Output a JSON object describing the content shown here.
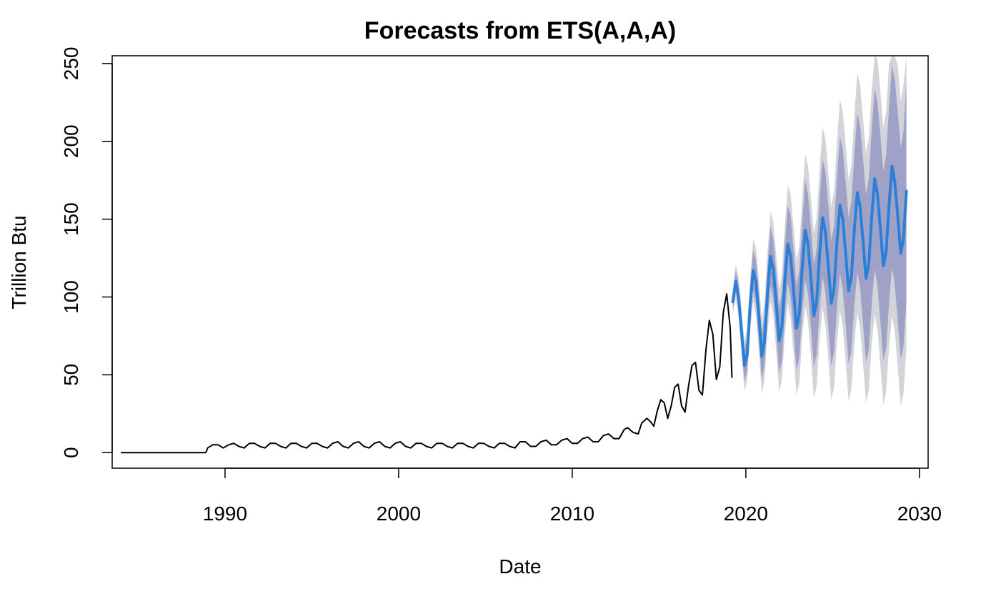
{
  "chart_data": {
    "type": "line",
    "title": "Forecasts from ETS(A,A,A)",
    "xlabel": "Date",
    "ylabel": "Trillion Btu",
    "xlim": [
      1983.5,
      2030.5
    ],
    "ylim": [
      -10,
      255
    ],
    "x_ticks": [
      1990,
      2000,
      2010,
      2020,
      2030
    ],
    "y_ticks": [
      0,
      50,
      100,
      150,
      200,
      250
    ],
    "x_tick_labels": [
      "1990",
      "2000",
      "2010",
      "2020",
      "2030"
    ],
    "y_tick_labels": [
      "0",
      "50",
      "100",
      "150",
      "200",
      "250"
    ],
    "grid": false,
    "legend": "none",
    "colors": {
      "observed": "#000000",
      "forecast": "#2a7fd8",
      "band_80": "#9fa2c6",
      "band_95": "#d3d4da"
    },
    "series": [
      {
        "role": "observed",
        "x": [
          1984.0,
          1984.5,
          1985.0,
          1985.5,
          1986.0,
          1986.5,
          1987.0,
          1987.5,
          1988.0,
          1988.5,
          1988.9,
          1989.0,
          1989.3,
          1989.6,
          1989.9,
          1990.2,
          1990.5,
          1990.8,
          1991.1,
          1991.4,
          1991.7,
          1992.0,
          1992.3,
          1992.6,
          1992.9,
          1993.2,
          1993.5,
          1993.8,
          1994.1,
          1994.4,
          1994.7,
          1995.0,
          1995.3,
          1995.6,
          1995.9,
          1996.2,
          1996.5,
          1996.8,
          1997.1,
          1997.4,
          1997.7,
          1998.0,
          1998.3,
          1998.6,
          1998.9,
          1999.2,
          1999.5,
          1999.8,
          2000.1,
          2000.4,
          2000.7,
          2001.0,
          2001.3,
          2001.6,
          2001.9,
          2002.2,
          2002.5,
          2002.8,
          2003.1,
          2003.4,
          2003.7,
          2004.0,
          2004.3,
          2004.6,
          2004.9,
          2005.2,
          2005.5,
          2005.8,
          2006.1,
          2006.4,
          2006.7,
          2007.0,
          2007.3,
          2007.6,
          2007.9,
          2008.2,
          2008.5,
          2008.8,
          2009.1,
          2009.4,
          2009.7,
          2010.0,
          2010.3,
          2010.6,
          2010.9,
          2011.2,
          2011.5,
          2011.8,
          2012.1,
          2012.4,
          2012.7,
          2013.0,
          2013.2,
          2013.5,
          2013.8,
          2014.0,
          2014.3,
          2014.5,
          2014.7,
          2014.9,
          2015.1,
          2015.3,
          2015.5,
          2015.7,
          2015.9,
          2016.1,
          2016.3,
          2016.5,
          2016.7,
          2016.9,
          2017.1,
          2017.3,
          2017.5,
          2017.7,
          2017.9,
          2018.1,
          2018.3,
          2018.5,
          2018.7,
          2018.9,
          2019.1,
          2019.2
        ],
        "y": [
          0,
          0,
          0,
          0,
          0,
          0,
          0,
          0,
          0,
          0,
          0,
          3,
          5,
          5,
          3,
          5,
          6,
          4,
          3,
          6,
          6,
          4,
          3,
          6,
          6,
          4,
          3,
          6,
          6,
          4,
          3,
          6,
          6,
          4,
          3,
          6,
          7,
          4,
          3,
          6,
          7,
          4,
          3,
          6,
          7,
          4,
          3,
          6,
          7,
          4,
          3,
          6,
          6,
          4,
          3,
          6,
          6,
          4,
          3,
          6,
          6,
          4,
          3,
          6,
          6,
          4,
          3,
          6,
          6,
          4,
          3,
          7,
          7,
          4,
          4,
          7,
          8,
          5,
          5,
          8,
          9,
          6,
          6,
          9,
          10,
          7,
          7,
          11,
          12,
          9,
          9,
          15,
          16,
          13,
          12,
          19,
          22,
          20,
          17,
          27,
          34,
          32,
          22,
          30,
          42,
          44,
          30,
          26,
          43,
          56,
          58,
          40,
          37,
          66,
          85,
          76,
          47,
          55,
          90,
          102,
          80,
          48
        ]
      },
      {
        "role": "forecast",
        "x": [
          2019.25,
          2019.42,
          2019.58,
          2019.75,
          2019.92,
          2020.08,
          2020.25,
          2020.42,
          2020.58,
          2020.75,
          2020.92,
          2021.08,
          2021.25,
          2021.42,
          2021.58,
          2021.75,
          2021.92,
          2022.08,
          2022.25,
          2022.42,
          2022.58,
          2022.75,
          2022.92,
          2023.08,
          2023.25,
          2023.42,
          2023.58,
          2023.75,
          2023.92,
          2024.08,
          2024.25,
          2024.42,
          2024.58,
          2024.75,
          2024.92,
          2025.08,
          2025.25,
          2025.42,
          2025.58,
          2025.75,
          2025.92,
          2026.08,
          2026.25,
          2026.42,
          2026.58,
          2026.75,
          2026.92,
          2027.08,
          2027.25,
          2027.42,
          2027.58,
          2027.75,
          2027.92,
          2028.08,
          2028.25,
          2028.42,
          2028.58,
          2028.75,
          2028.92,
          2029.08,
          2029.25
        ],
        "y": [
          97,
          110,
          100,
          78,
          56,
          63,
          95,
          117,
          110,
          88,
          62,
          72,
          103,
          126,
          118,
          96,
          72,
          81,
          111,
          134,
          126,
          104,
          80,
          89,
          119,
          143,
          134,
          112,
          88,
          97,
          127,
          151,
          142,
          120,
          96,
          105,
          135,
          159,
          150,
          128,
          104,
          113,
          143,
          167,
          158,
          136,
          112,
          121,
          151,
          176,
          166,
          144,
          120,
          129,
          159,
          184,
          174,
          152,
          128,
          137,
          168
        ]
      }
    ],
    "bands": [
      {
        "level": "80%",
        "lower": [
          92,
          103,
          92,
          69,
          46,
          52,
          84,
          104,
          96,
          73,
          47,
          56,
          86,
          107,
          99,
          76,
          51,
          59,
          88,
          109,
          100,
          78,
          53,
          61,
          90,
          111,
          102,
          80,
          55,
          63,
          92,
          113,
          103,
          81,
          56,
          64,
          93,
          115,
          105,
          82,
          57,
          65,
          94,
          116,
          106,
          83,
          58,
          66,
          95,
          118,
          107,
          84,
          59,
          67,
          96,
          119,
          108,
          85,
          60,
          68,
          97
        ],
        "upper": [
          102,
          117,
          108,
          87,
          66,
          74,
          106,
          130,
          124,
          103,
          77,
          88,
          120,
          145,
          137,
          116,
          93,
          103,
          134,
          159,
          152,
          130,
          107,
          117,
          148,
          175,
          166,
          144,
          121,
          131,
          162,
          189,
          181,
          159,
          136,
          146,
          177,
          203,
          195,
          174,
          151,
          161,
          192,
          218,
          210,
          189,
          166,
          176,
          207,
          234,
          225,
          204,
          181,
          191,
          222,
          249,
          240,
          219,
          196,
          206,
          239
        ]
      },
      {
        "level": "95%",
        "lower": [
          89,
          99,
          87,
          64,
          40,
          46,
          78,
          97,
          88,
          65,
          38,
          47,
          77,
          97,
          88,
          65,
          39,
          47,
          76,
          96,
          86,
          63,
          37,
          45,
          74,
          94,
          84,
          61,
          35,
          43,
          72,
          93,
          82,
          60,
          34,
          42,
          71,
          91,
          81,
          58,
          33,
          41,
          70,
          90,
          80,
          57,
          32,
          40,
          69,
          89,
          79,
          56,
          31,
          39,
          68,
          88,
          78,
          55,
          30,
          38,
          67
        ],
        "upper": [
          105,
          121,
          113,
          92,
          72,
          80,
          112,
          137,
          132,
          111,
          86,
          97,
          129,
          155,
          148,
          127,
          105,
          115,
          146,
          172,
          166,
          145,
          123,
          133,
          164,
          192,
          184,
          163,
          141,
          151,
          182,
          209,
          202,
          180,
          158,
          168,
          199,
          227,
          219,
          198,
          175,
          185,
          216,
          244,
          236,
          215,
          192,
          202,
          233,
          262,
          253,
          232,
          209,
          219,
          250,
          279,
          270,
          249,
          226,
          236,
          270
        ]
      }
    ]
  }
}
